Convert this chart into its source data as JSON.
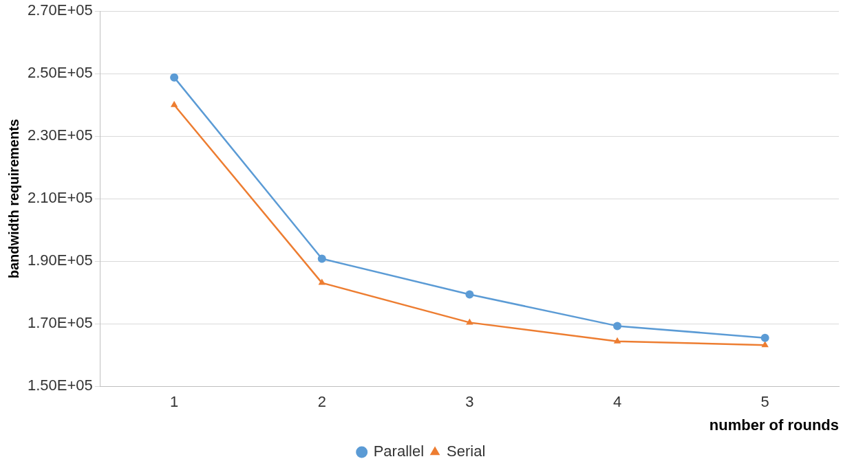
{
  "chart_data": {
    "type": "line",
    "xlabel": "number of rounds",
    "ylabel": "bandwidth requirements",
    "categories": [
      "1",
      "2",
      "3",
      "4",
      "5"
    ],
    "series": [
      {
        "name": "Parallel",
        "color": "#5b9bd5",
        "marker": "circle",
        "values": [
          248800,
          190800,
          179400,
          169300,
          165500
        ]
      },
      {
        "name": "Serial",
        "color": "#ed7d31",
        "marker": "triangle",
        "values": [
          240000,
          183100,
          170400,
          164400,
          163200
        ]
      }
    ],
    "ylim": [
      150000,
      270000
    ],
    "yticks": [
      {
        "value": 150000,
        "label": "1.50E+05"
      },
      {
        "value": 170000,
        "label": "1.70E+05"
      },
      {
        "value": 190000,
        "label": "1.90E+05"
      },
      {
        "value": 210000,
        "label": "2.10E+05"
      },
      {
        "value": 230000,
        "label": "2.30E+05"
      },
      {
        "value": 250000,
        "label": "2.50E+05"
      },
      {
        "value": 270000,
        "label": "2.70E+05"
      }
    ],
    "grid": "y",
    "legend": "bottom",
    "line_style": "solid"
  }
}
